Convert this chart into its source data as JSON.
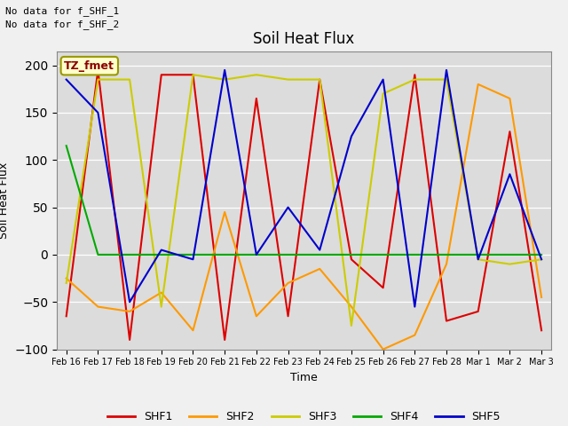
{
  "title": "Soil Heat Flux",
  "ylabel": "Soil Heat Flux",
  "xlabel": "Time",
  "annotations": [
    "No data for f_SHF_1",
    "No data for f_SHF_2"
  ],
  "legend_label": "TZ_fmet",
  "series_labels": [
    "SHF1",
    "SHF2",
    "SHF3",
    "SHF4",
    "SHF5"
  ],
  "series_colors": [
    "#dd0000",
    "#ff9900",
    "#cccc00",
    "#00aa00",
    "#0000cc"
  ],
  "xtick_labels": [
    "Feb 16",
    "Feb 17",
    "Feb 18",
    "Feb 19",
    "Feb 20",
    "Feb 21",
    "Feb 22",
    "Feb 23",
    "Feb 24",
    "Feb 25",
    "Feb 26",
    "Feb 27",
    "Feb 28",
    "Mar 1",
    "Mar 2",
    "Mar 3"
  ],
  "ylim": [
    -100,
    215
  ],
  "yticks": [
    -100,
    -50,
    0,
    50,
    100,
    150,
    200
  ],
  "plot_bg": "#dcdcdc",
  "fig_bg": "#f0f0f0",
  "SHF1": [
    -65,
    195,
    -90,
    190,
    190,
    -90,
    165,
    -65,
    185,
    -5,
    -35,
    190,
    -70,
    -60,
    130,
    -80
  ],
  "SHF2": [
    -25,
    -55,
    -60,
    -40,
    -80,
    45,
    -65,
    -30,
    -15,
    -55,
    -100,
    -85,
    -10,
    180,
    165,
    -45
  ],
  "SHF3": [
    -30,
    185,
    185,
    -55,
    190,
    185,
    190,
    185,
    185,
    -75,
    170,
    185,
    185,
    -5,
    -10,
    -5
  ],
  "SHF4": [
    115,
    0,
    0,
    0,
    0,
    0,
    0,
    0,
    0,
    0,
    0,
    0,
    0,
    0,
    0,
    0
  ],
  "SHF5": [
    185,
    150,
    -50,
    5,
    -5,
    195,
    0,
    50,
    5,
    125,
    185,
    -55,
    195,
    -5,
    85,
    -5
  ]
}
